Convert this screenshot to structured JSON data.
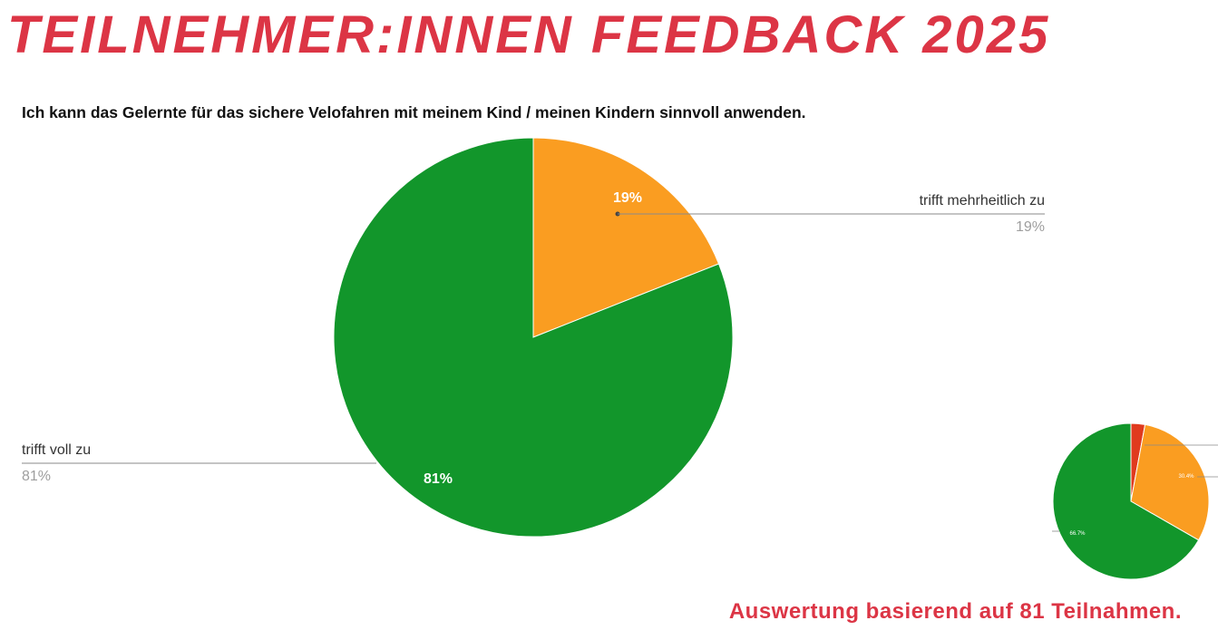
{
  "header": {
    "title": "TEILNEHMER:INNEN FEEDBACK 2025",
    "title_color": "#dc3545"
  },
  "footer": {
    "note": "Auswertung basierend auf 81 Teilnahmen.",
    "note_color": "#dc3545"
  },
  "chart_data": [
    {
      "type": "pie",
      "title": "Ich kann das Gelernte für das sichere Velofahren mit meinem Kind / meinen Kindern sinnvoll anwenden.",
      "slices": [
        {
          "label": "trifft mehrheitlich zu",
          "value": 19,
          "value_label": "19%",
          "color": "#fa9d21"
        },
        {
          "label": "trifft voll zu",
          "value": 81,
          "value_label": "81%",
          "color": "#12962b"
        }
      ],
      "legend": "labels with leader lines",
      "label_color": "#333333",
      "value_color": "#9e9e9e"
    },
    {
      "type": "pie",
      "slices": [
        {
          "value": 2.9,
          "color": "#e03a1e"
        },
        {
          "value": 30.4,
          "value_label": "30.4%",
          "color": "#fa9d21"
        },
        {
          "value": 66.7,
          "value_label": "66.7%",
          "color": "#12962b"
        }
      ]
    }
  ]
}
